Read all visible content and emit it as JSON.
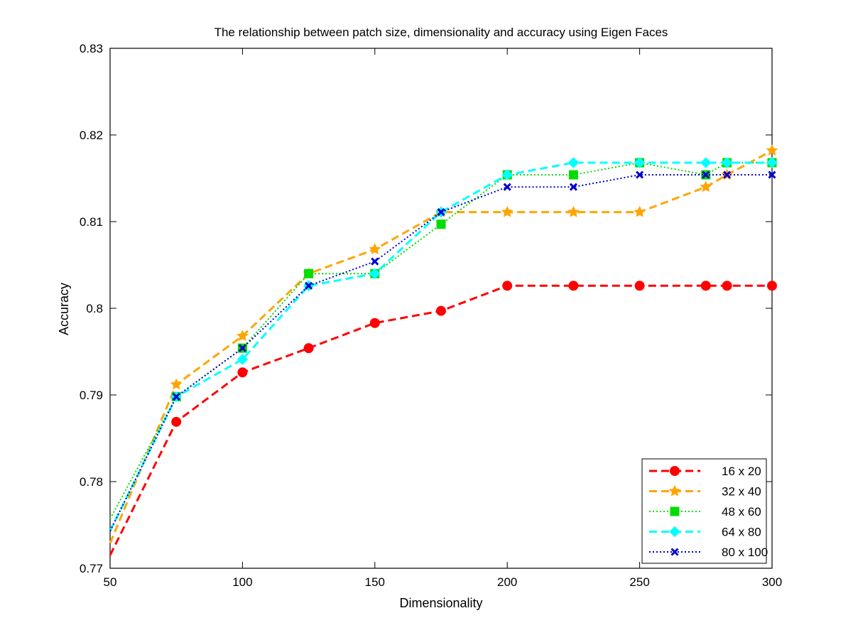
{
  "chart_data": {
    "type": "line",
    "title": "The relationship between patch size, dimensionality and accuracy using Eigen Faces",
    "xlabel": "Dimensionality",
    "ylabel": "Accuracy",
    "xlim": [
      50,
      300
    ],
    "ylim": [
      0.77,
      0.83
    ],
    "xticks": [
      50,
      100,
      150,
      200,
      250,
      300
    ],
    "xtick_labels": [
      "50",
      "100",
      "150",
      "200",
      "250",
      "300"
    ],
    "yticks": [
      0.77,
      0.78,
      0.79,
      0.8,
      0.81,
      0.82,
      0.83
    ],
    "ytick_labels": [
      "0.77",
      "0.78",
      "0.79",
      "0.8",
      "0.81",
      "0.82",
      "0.83"
    ],
    "grid": false,
    "legend_position": "bottom-right",
    "x": [
      50,
      75,
      100,
      125,
      150,
      175,
      200,
      225,
      250,
      275,
      283,
      300
    ],
    "series": [
      {
        "name": "16 x 20",
        "color": "#ff0000",
        "dash": "dashed",
        "marker": "circle",
        "marker_from": 1,
        "values": [
          0.7715,
          0.7869,
          0.7926,
          0.7954,
          0.7983,
          0.7997,
          0.8026,
          0.8026,
          0.8026,
          0.8026,
          0.8026,
          0.8026
        ]
      },
      {
        "name": "32 x 40",
        "color": "#ffa500",
        "dash": "dashed",
        "marker": "star",
        "marker_from": 1,
        "values": [
          0.7729,
          0.7912,
          0.7968,
          0.804,
          0.8068,
          0.8111,
          0.8111,
          0.8111,
          0.8111,
          0.814,
          0.8154,
          0.8182
        ]
      },
      {
        "name": "48 x 60",
        "color": "#00dd00",
        "dash": "dotted",
        "marker": "square",
        "marker_from": 1,
        "values": [
          0.7757,
          0.7898,
          0.7954,
          0.804,
          0.804,
          0.8097,
          0.8154,
          0.8154,
          0.8168,
          0.8154,
          0.8168,
          0.8168
        ]
      },
      {
        "name": "64 x 80",
        "color": "#00ffff",
        "dash": "dashed",
        "marker": "diamond",
        "marker_from": 1,
        "values": [
          0.7743,
          0.7898,
          0.7941,
          0.8026,
          0.804,
          0.8111,
          0.8154,
          0.8168,
          0.8168,
          0.8168,
          0.8168,
          0.8168
        ]
      },
      {
        "name": "80 x 100",
        "color": "#0000cc",
        "dash": "dotted",
        "marker": "x",
        "marker_from": 1,
        "values": [
          0.7743,
          0.7898,
          0.7954,
          0.8026,
          0.8054,
          0.8111,
          0.814,
          0.814,
          0.8154,
          0.8154,
          0.8154,
          0.8154
        ]
      }
    ]
  }
}
